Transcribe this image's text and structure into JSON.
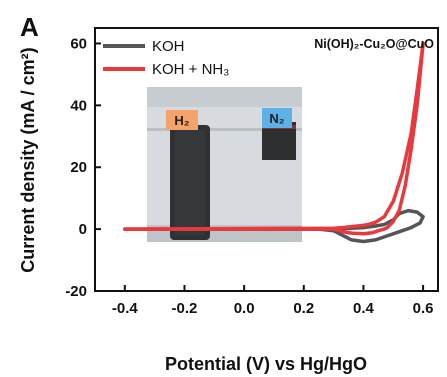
{
  "panel_label": "A",
  "chart_data": {
    "type": "line",
    "title": "",
    "xlabel": "Potential (V) vs Hg/HgO",
    "ylabel": "Current density (mA / cm²)",
    "xlim": [
      -0.5,
      0.65
    ],
    "ylim": [
      -20,
      65
    ],
    "xticks": [
      -0.4,
      -0.2,
      0.0,
      0.2,
      0.4,
      0.6
    ],
    "xtick_labels": [
      "-0.4",
      "-0.2",
      "0.0",
      "0.2",
      "0.4",
      "0.6"
    ],
    "yticks": [
      -20,
      0,
      20,
      40,
      60
    ],
    "ytick_labels": [
      "-20",
      "0",
      "20",
      "40",
      "60"
    ],
    "grid": false,
    "legend_position": "top-left",
    "annotation": "Ni(OH)₂-Cu₂O@CuO",
    "series": [
      {
        "name": "KOH",
        "color": "#555555",
        "x": [
          -0.4,
          0.25,
          0.3,
          0.33,
          0.36,
          0.4,
          0.44,
          0.47,
          0.5,
          0.53,
          0.56,
          0.59,
          0.6,
          0.58,
          0.55,
          0.52,
          0.5,
          0.47,
          0.44,
          0.4,
          0.36,
          0.33,
          0.3,
          0.27,
          0.25,
          -0.4
        ],
        "y": [
          0,
          0,
          -0.5,
          -2,
          -3.5,
          -4,
          -3.5,
          -2.5,
          -1.5,
          -0.5,
          0.5,
          2,
          4,
          5.5,
          6,
          5,
          3,
          1.5,
          1,
          0.5,
          0.3,
          0.2,
          0.1,
          0.05,
          0,
          0
        ]
      },
      {
        "name": "KOH + NH₃",
        "color": "#e8393d",
        "x": [
          -0.4,
          0.3,
          0.33,
          0.36,
          0.4,
          0.43,
          0.45,
          0.47,
          0.48,
          0.5,
          0.52,
          0.54,
          0.56,
          0.58,
          0.6
        ],
        "y": [
          0,
          0,
          -0.8,
          -1.3,
          -1.5,
          -1.2,
          -0.5,
          0,
          0.5,
          2.5,
          6,
          14,
          26,
          40,
          60
        ]
      },
      {
        "name": "",
        "color": "#e8393d",
        "x": [
          0.6,
          0.58,
          0.56,
          0.53,
          0.5,
          0.47,
          0.44,
          0.42,
          0.4,
          0.36,
          0.33,
          0.3,
          -0.4
        ],
        "y": [
          60,
          45,
          31,
          18,
          9,
          4,
          2.2,
          1.6,
          1.2,
          0.8,
          0.5,
          0.3,
          0
        ]
      }
    ],
    "inset_photo": {
      "labels": [
        "H₂",
        "N₂"
      ],
      "label_colors": [
        "#f4a46a",
        "#5fb0e6"
      ]
    }
  }
}
